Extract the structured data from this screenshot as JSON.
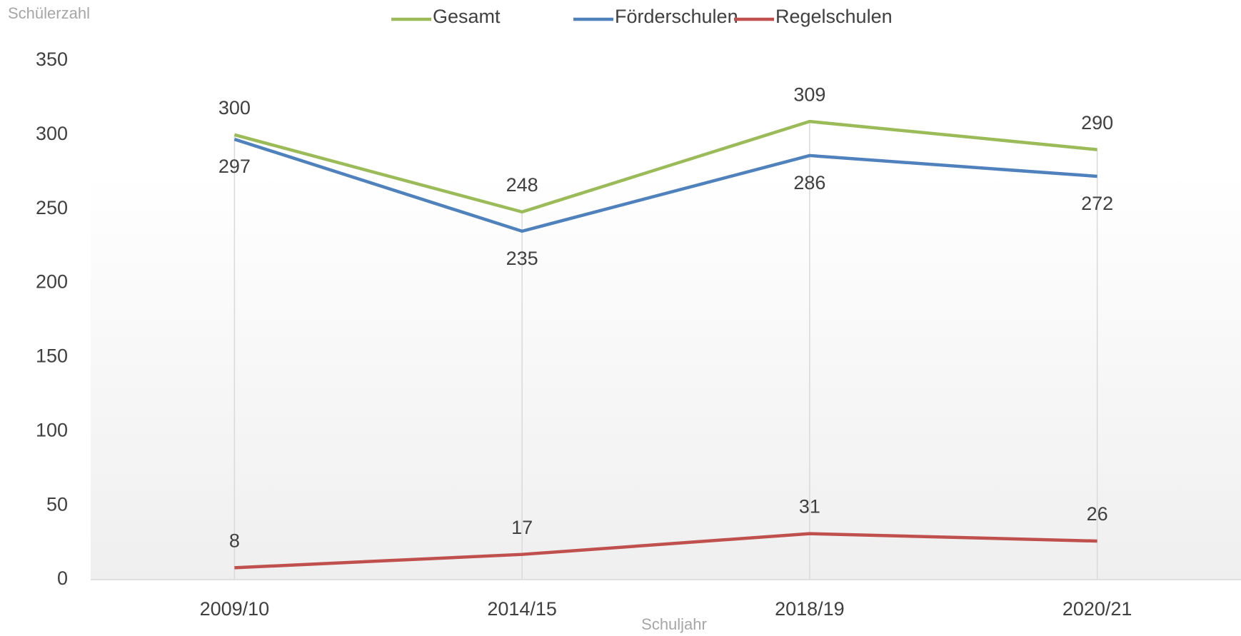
{
  "chart_data": {
    "type": "line",
    "x_label": "Schuljahr",
    "y_label": "Schülerzahl",
    "categories": [
      "2009/10",
      "2014/15",
      "2018/19",
      "2020/21"
    ],
    "series": [
      {
        "name": "Gesamt",
        "color": "#9bbb59",
        "values": [
          300,
          248,
          309,
          290
        ],
        "label_side": "above"
      },
      {
        "name": "Förderschulen",
        "color": "#4f81bd",
        "values": [
          297,
          235,
          286,
          272
        ],
        "label_side": "below"
      },
      {
        "name": "Regelschulen",
        "color": "#c0504d",
        "values": [
          8,
          17,
          31,
          26
        ],
        "label_side": "above"
      }
    ],
    "ylim": [
      0,
      350
    ],
    "yticks": [
      0,
      50,
      100,
      150,
      200,
      250,
      300,
      350
    ],
    "grid": false,
    "legend": "top"
  }
}
